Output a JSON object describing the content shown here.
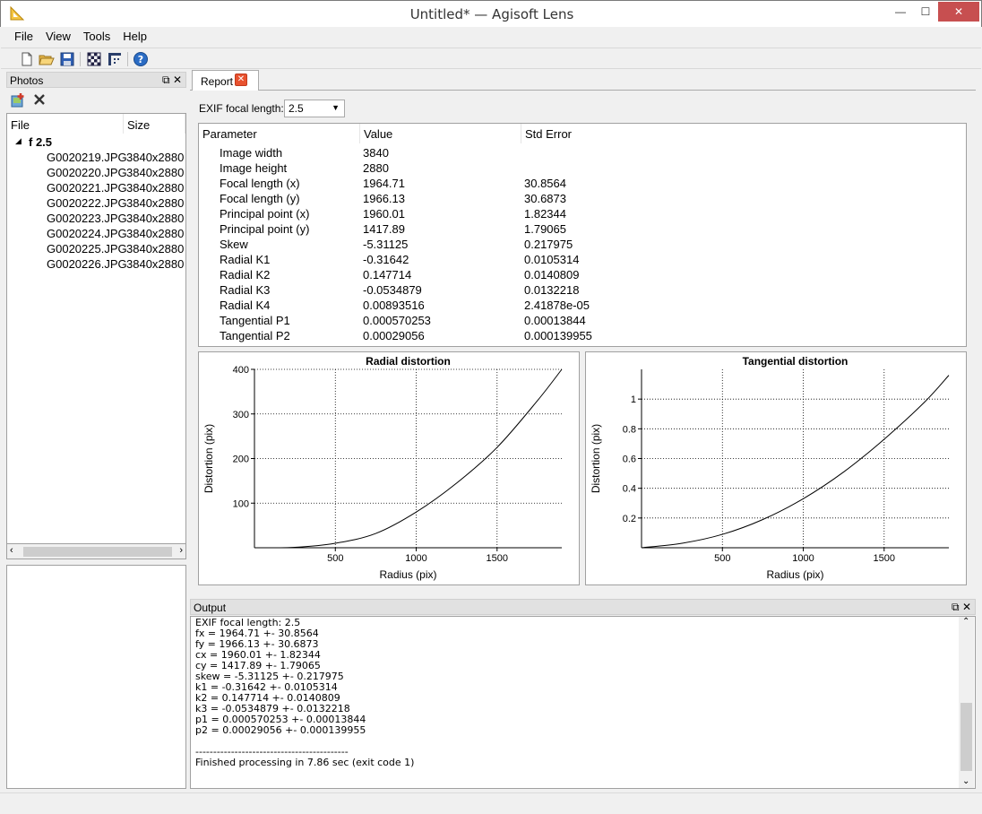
{
  "window": {
    "title": "Untitled* — Agisoft Lens",
    "minimize": "—",
    "maximize": "☐",
    "close": "✕",
    "close_color": "#c74f50"
  },
  "menu": [
    "File",
    "View",
    "Tools",
    "Help"
  ],
  "toolbar_icons": [
    "new-file-icon",
    "open-folder-icon",
    "save-icon",
    "checkerboard-icon",
    "capture-icon",
    "help-icon"
  ],
  "photos": {
    "title": "Photos",
    "columns": [
      "File",
      "Size"
    ],
    "group": "f 2.5",
    "files": [
      {
        "name": "G0020219.JPG",
        "size": "3840x2880"
      },
      {
        "name": "G0020220.JPG",
        "size": "3840x2880"
      },
      {
        "name": "G0020221.JPG",
        "size": "3840x2880"
      },
      {
        "name": "G0020222.JPG",
        "size": "3840x2880"
      },
      {
        "name": "G0020223.JPG",
        "size": "3840x2880"
      },
      {
        "name": "G0020224.JPG",
        "size": "3840x2880"
      },
      {
        "name": "G0020225.JPG",
        "size": "3840x2880"
      },
      {
        "name": "G0020226.JPG",
        "size": "3840x2880"
      }
    ]
  },
  "report": {
    "tab_label": "Report",
    "exif_label": "EXIF focal length:",
    "exif_value": "2.5",
    "columns": [
      "Parameter",
      "Value",
      "Std Error"
    ],
    "rows": [
      [
        "Image width",
        "3840",
        ""
      ],
      [
        "Image height",
        "2880",
        ""
      ],
      [
        "Focal length (x)",
        "1964.71",
        "30.8564"
      ],
      [
        "Focal length (y)",
        "1966.13",
        "30.6873"
      ],
      [
        "Principal point (x)",
        "1960.01",
        "1.82344"
      ],
      [
        "Principal point (y)",
        "1417.89",
        "1.79065"
      ],
      [
        "Skew",
        "-5.31125",
        "0.217975"
      ],
      [
        "Radial K1",
        "-0.31642",
        "0.0105314"
      ],
      [
        "Radial K2",
        "0.147714",
        "0.0140809"
      ],
      [
        "Radial K3",
        "-0.0534879",
        "0.0132218"
      ],
      [
        "Radial K4",
        "0.00893516",
        "2.41878e-05"
      ],
      [
        "Tangential P1",
        "0.000570253",
        "0.00013844"
      ],
      [
        "Tangential P2",
        "0.00029056",
        "0.000139955"
      ]
    ]
  },
  "chart_data": [
    {
      "type": "line",
      "title": "Radial distortion",
      "xlabel": "Radius (pix)",
      "ylabel": "Distortion (pix)",
      "xlim": [
        0,
        1900
      ],
      "ylim": [
        0,
        400
      ],
      "xticks": [
        500,
        1000,
        1500
      ],
      "yticks": [
        100,
        200,
        300,
        400
      ],
      "grid": true,
      "x": [
        0,
        250,
        500,
        750,
        1000,
        1250,
        1500,
        1750,
        1900
      ],
      "y": [
        0,
        1,
        10,
        32,
        80,
        145,
        225,
        330,
        405
      ]
    },
    {
      "type": "line",
      "title": "Tangential distortion",
      "xlabel": "Radius (pix)",
      "ylabel": "Distortion (pix)",
      "xlim": [
        0,
        1900
      ],
      "ylim": [
        0,
        1.2
      ],
      "xticks": [
        500,
        1000,
        1500
      ],
      "yticks": [
        0.2,
        0.4,
        0.6,
        0.8,
        1
      ],
      "grid": true,
      "x": [
        0,
        250,
        500,
        750,
        1000,
        1250,
        1500,
        1750,
        1900
      ],
      "y": [
        0,
        0.03,
        0.09,
        0.19,
        0.33,
        0.51,
        0.73,
        0.98,
        1.16
      ]
    }
  ],
  "output": {
    "title": "Output",
    "text": "EXIF focal length: 2.5\nfx = 1964.71 +- 30.8564\nfy = 1966.13 +- 30.6873\ncx = 1960.01 +- 1.82344\ncy = 1417.89 +- 1.79065\nskew = -5.31125 +- 0.217975\nk1 = -0.31642 +- 0.0105314\nk2 = 0.147714 +- 0.0140809\nk3 = -0.0534879 +- 0.0132218\np1 = 0.000570253 +- 0.00013844\np2 = 0.00029056 +- 0.000139955\n\n-------------------------------------------\nFinished processing in 7.86 sec (exit code 1)"
  }
}
